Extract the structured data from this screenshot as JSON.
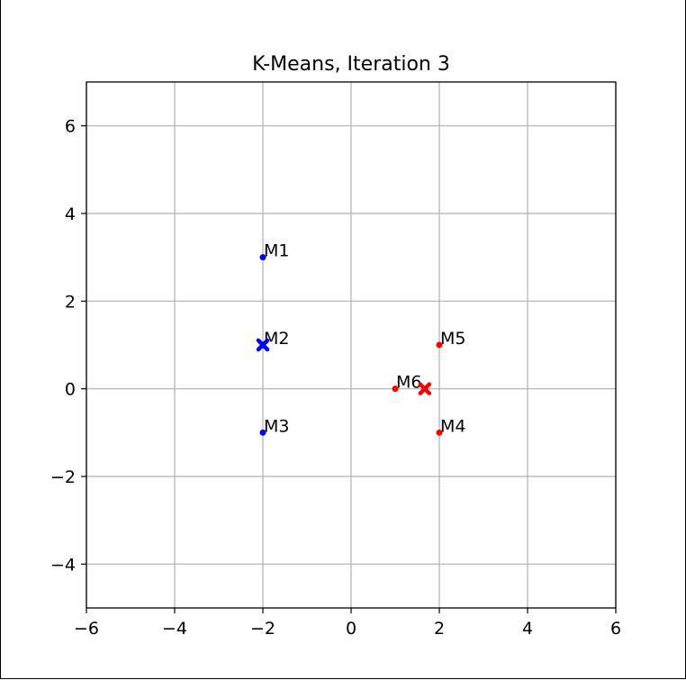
{
  "chart_data": {
    "type": "scatter",
    "title": "K-Means, Iteration 3",
    "xlabel": "",
    "ylabel": "",
    "xlim": [
      -6,
      6
    ],
    "ylim": [
      -5,
      7
    ],
    "x_ticks": [
      -6,
      -4,
      -2,
      0,
      2,
      4,
      6
    ],
    "y_ticks": [
      -4,
      -2,
      0,
      2,
      4,
      6
    ],
    "x_tick_labels": [
      "−6",
      "−4",
      "−2",
      "0",
      "2",
      "4",
      "6"
    ],
    "y_tick_labels": [
      "−4",
      "−2",
      "0",
      "2",
      "4",
      "6"
    ],
    "grid": true,
    "points": [
      {
        "label": "M1",
        "x": -2,
        "y": 3,
        "cluster": "blue"
      },
      {
        "label": "M2",
        "x": -2,
        "y": 1,
        "cluster": "blue"
      },
      {
        "label": "M3",
        "x": -2,
        "y": -1,
        "cluster": "blue"
      },
      {
        "label": "M4",
        "x": 2,
        "y": -1,
        "cluster": "red"
      },
      {
        "label": "M5",
        "x": 2,
        "y": 1,
        "cluster": "red"
      },
      {
        "label": "M6",
        "x": 1,
        "y": 0,
        "cluster": "red"
      }
    ],
    "centroids": [
      {
        "x": -2,
        "y": 1,
        "cluster": "blue",
        "marker": "X"
      },
      {
        "x": 1.67,
        "y": 0,
        "cluster": "red",
        "marker": "X"
      }
    ],
    "colors": {
      "blue": "#0000ff",
      "red": "#ff0000",
      "grid": "#b0b0b0"
    }
  }
}
